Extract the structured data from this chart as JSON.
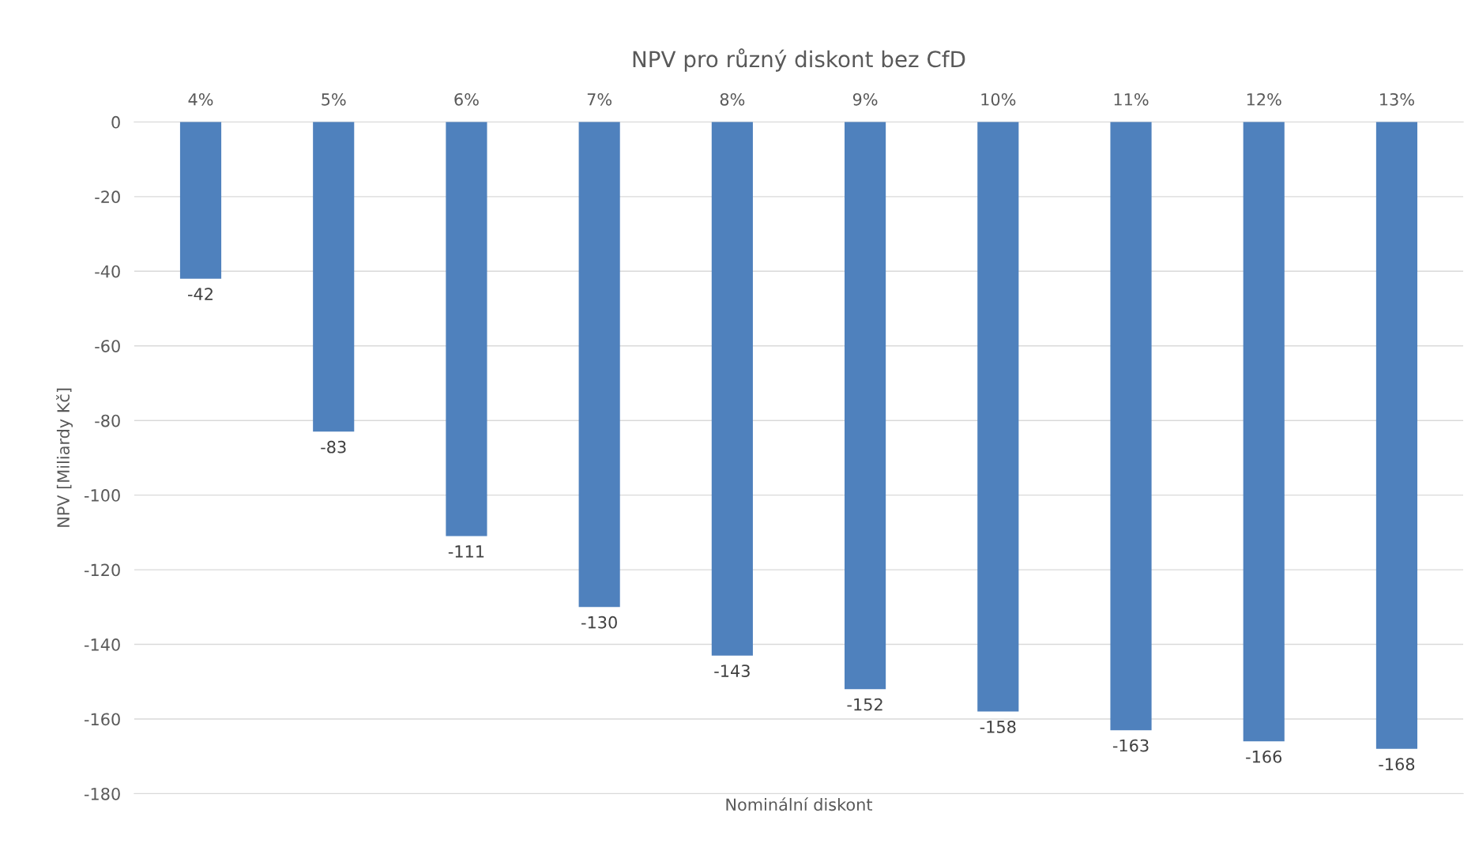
{
  "chart_data": {
    "type": "bar",
    "title": "NPV pro různý diskont bez CfD",
    "xlabel": "Nominální diskont",
    "ylabel": "NPV [Miliardy Kč]",
    "categories": [
      "4%",
      "5%",
      "6%",
      "7%",
      "8%",
      "9%",
      "10%",
      "11%",
      "12%",
      "13%"
    ],
    "values": [
      -42,
      -83,
      -111,
      -130,
      -143,
      -152,
      -158,
      -163,
      -166,
      -168
    ],
    "color": "#4f81bd",
    "ylim": [
      -180,
      0
    ],
    "yticks": [
      -180,
      -160,
      -140,
      -120,
      -100,
      -80,
      -60,
      -40,
      -20,
      0
    ],
    "grid": "y",
    "data_labels": true
  }
}
